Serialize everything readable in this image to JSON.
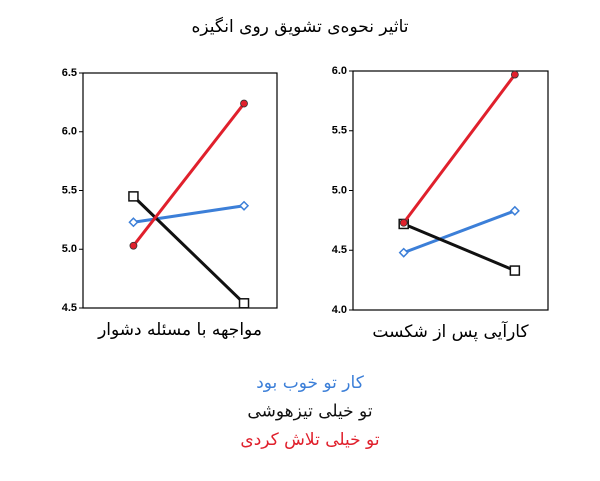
{
  "title": "تاثیر نحوه‌ی تشویق روی انگیزه",
  "chart_data": [
    {
      "type": "line",
      "xlabel": "مواجهه با مسئله دشوار",
      "ylim": [
        4.5,
        6.5
      ],
      "yticks": [
        4.5,
        {
          "value": 5,
          "label": "5.0"
        },
        5.5,
        {
          "value": 6,
          "label": "6.0"
        },
        6.5
      ],
      "series": [
        {
          "name": "کار تو خوب بود",
          "color": "#3c7fd8",
          "marker": "diamond",
          "values": [
            5.23,
            5.37
          ]
        },
        {
          "name": "تو خیلی تیزهوشی",
          "color": "#111111",
          "marker": "square",
          "values": [
            5.45,
            4.54
          ]
        },
        {
          "name": "تو خیلی تلاش کردی",
          "color": "#e0202c",
          "marker": "circle",
          "values": [
            5.03,
            6.24
          ]
        }
      ]
    },
    {
      "type": "line",
      "xlabel": "کارآیی پس از شکست",
      "ylim": [
        4,
        6
      ],
      "yticks": [
        {
          "value": 4,
          "label": "4.0"
        },
        4.5,
        {
          "value": 5,
          "label": "5.0"
        },
        5.5,
        {
          "value": 6,
          "label": "6.0"
        }
      ],
      "series": [
        {
          "color": "#3c7fd8",
          "marker": "diamond",
          "values": [
            4.48,
            4.83
          ]
        },
        {
          "color": "#111111",
          "marker": "square",
          "values": [
            4.72,
            4.33
          ]
        },
        {
          "color": "#e0202c",
          "marker": "circle",
          "values": [
            4.73,
            5.97
          ]
        }
      ]
    }
  ]
}
